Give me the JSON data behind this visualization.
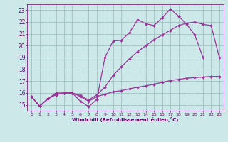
{
  "background_color": "#cce8e8",
  "line_color": "#993399",
  "grid_color": "#99bbbb",
  "xlabel": "Windchill (Refroidissement éolien,°C)",
  "xlabel_color": "#660066",
  "tick_color": "#660066",
  "xlim": [
    -0.5,
    23.5
  ],
  "ylim": [
    14.5,
    23.5
  ],
  "yticks": [
    15,
    16,
    17,
    18,
    19,
    20,
    21,
    22,
    23
  ],
  "xticks": [
    0,
    1,
    2,
    3,
    4,
    5,
    6,
    7,
    8,
    9,
    10,
    11,
    12,
    13,
    14,
    15,
    16,
    17,
    18,
    19,
    20,
    21,
    22,
    23
  ],
  "line_a_x": [
    0,
    1,
    2,
    3,
    4,
    5,
    6,
    7,
    8,
    9,
    10,
    11,
    12,
    13,
    14,
    15,
    16,
    17,
    18,
    19,
    20,
    21
  ],
  "line_a_y": [
    15.7,
    14.9,
    15.5,
    16.0,
    16.0,
    16.0,
    15.3,
    14.85,
    15.45,
    19.0,
    20.4,
    20.45,
    21.1,
    22.2,
    21.85,
    21.7,
    22.35,
    23.1,
    22.5,
    21.8,
    20.9,
    19.0
  ],
  "line_b_x": [
    0,
    1,
    2,
    3,
    4,
    5,
    6,
    7,
    8,
    9,
    10,
    11,
    12,
    13,
    14,
    15,
    16,
    17,
    18,
    19,
    20,
    21,
    22,
    23
  ],
  "line_b_y": [
    15.7,
    14.9,
    15.5,
    15.9,
    16.0,
    16.0,
    15.8,
    15.4,
    15.85,
    16.5,
    17.5,
    18.2,
    18.9,
    19.5,
    20.0,
    20.5,
    20.9,
    21.3,
    21.7,
    21.9,
    22.0,
    21.8,
    21.7,
    19.0
  ],
  "line_c_x": [
    0,
    1,
    2,
    3,
    4,
    5,
    6,
    7,
    8,
    9,
    10,
    11,
    12,
    13,
    14,
    15,
    16,
    17,
    18,
    19,
    20,
    21,
    22,
    23
  ],
  "line_c_y": [
    15.7,
    14.9,
    15.5,
    15.85,
    16.0,
    16.0,
    15.7,
    15.3,
    15.7,
    15.9,
    16.1,
    16.2,
    16.35,
    16.5,
    16.6,
    16.75,
    16.9,
    17.05,
    17.15,
    17.25,
    17.3,
    17.35,
    17.4,
    17.4
  ],
  "marker": "D",
  "marker_size": 2.0,
  "linewidth": 0.9
}
